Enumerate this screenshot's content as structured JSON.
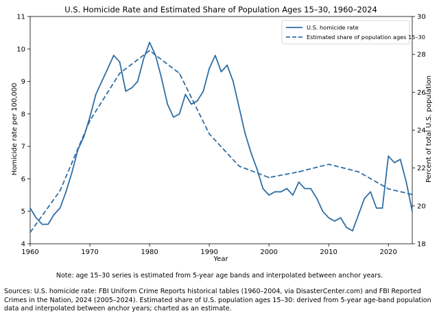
{
  "chart_data": {
    "type": "line",
    "title": "U.S. Homicide Rate and Estimated Share of Population Ages 15–30, 1960–2024",
    "xlabel": "Year",
    "ylabel_left": "Homicide rate per 100,000",
    "ylabel_right": "Percent of total U.S. population",
    "xlim": [
      1960,
      2024
    ],
    "ylim_left": [
      4,
      11
    ],
    "ylim_right": [
      18,
      30
    ],
    "xticks": [
      "1960",
      "1970",
      "1980",
      "1990",
      "2000",
      "2010",
      "2020"
    ],
    "yticks_left": [
      "4",
      "5",
      "6",
      "7",
      "8",
      "9",
      "10",
      "11"
    ],
    "yticks_right": [
      "18",
      "20",
      "22",
      "24",
      "26",
      "28",
      "30"
    ],
    "legend_position": "top-right",
    "grid": false,
    "color": "#2e6da4",
    "series": [
      {
        "name": "U.S. homicide rate",
        "axis": "left",
        "style": "solid",
        "x": [
          1960,
          1961,
          1962,
          1963,
          1964,
          1965,
          1966,
          1967,
          1968,
          1969,
          1970,
          1971,
          1972,
          1973,
          1974,
          1975,
          1976,
          1977,
          1978,
          1979,
          1980,
          1981,
          1982,
          1983,
          1984,
          1985,
          1986,
          1987,
          1988,
          1989,
          1990,
          1991,
          1992,
          1993,
          1994,
          1995,
          1996,
          1997,
          1998,
          1999,
          2000,
          2001,
          2002,
          2003,
          2004,
          2005,
          2006,
          2007,
          2008,
          2009,
          2010,
          2011,
          2012,
          2013,
          2014,
          2015,
          2016,
          2017,
          2018,
          2019,
          2020,
          2021,
          2022,
          2023,
          2024
        ],
        "y": [
          5.1,
          4.8,
          4.6,
          4.6,
          4.9,
          5.1,
          5.6,
          6.2,
          6.9,
          7.3,
          7.9,
          8.6,
          9.0,
          9.4,
          9.8,
          9.6,
          8.7,
          8.8,
          9.0,
          9.7,
          10.2,
          9.8,
          9.1,
          8.3,
          7.9,
          8.0,
          8.6,
          8.3,
          8.4,
          8.7,
          9.4,
          9.8,
          9.3,
          9.5,
          9.0,
          8.2,
          7.4,
          6.8,
          6.3,
          5.7,
          5.5,
          5.6,
          5.6,
          5.7,
          5.5,
          5.9,
          5.7,
          5.7,
          5.4,
          5.0,
          4.8,
          4.7,
          4.8,
          4.5,
          4.4,
          4.9,
          5.4,
          5.6,
          5.1,
          5.1,
          6.7,
          6.5,
          6.6,
          5.9,
          5.0
        ]
      },
      {
        "name": "Estimated share of population ages 15–30",
        "axis": "right",
        "style": "dashed",
        "x": [
          1960,
          1965,
          1970,
          1975,
          1980,
          1985,
          1990,
          1995,
          2000,
          2005,
          2010,
          2015,
          2020,
          2024
        ],
        "y": [
          18.6,
          20.8,
          24.5,
          27.0,
          28.2,
          27.0,
          23.8,
          22.1,
          21.5,
          21.8,
          22.2,
          21.8,
          20.9,
          20.6
        ]
      }
    ]
  },
  "note": "Note: age 15–30 series is estimated from 5-year age bands and interpolated between anchor years.",
  "sources": "Sources: U.S. homicide rate: FBI Uniform Crime Reports historical tables (1960–2004, via DisasterCenter.com) and FBI Reported Crimes in the Nation, 2024 (2005–2024). Estimated share of U.S. population ages 15–30: derived from 5-year age-band population data and interpolated between anchor years; charted as an estimate."
}
